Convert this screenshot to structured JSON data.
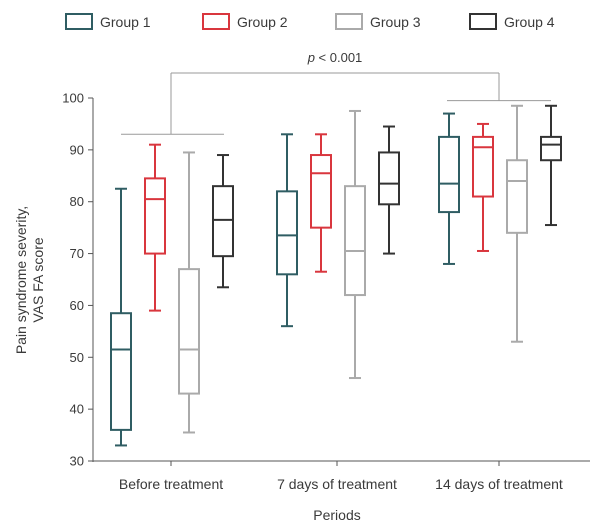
{
  "chart_data": {
    "type": "box",
    "xlabel": "Periods",
    "ylabel": [
      "Pain syndrome severity,",
      "VAS FA score"
    ],
    "ylim": [
      30,
      100
    ],
    "yticks": [
      30,
      40,
      50,
      60,
      70,
      80,
      90,
      100
    ],
    "categories": [
      "Before treatment",
      "7 days of treatment",
      "14 days of treatment"
    ],
    "legend_position": "top",
    "grid": false,
    "series": [
      {
        "name": "Group 1",
        "color": "#2f5d63",
        "boxes": [
          {
            "min": 33,
            "q1": 36,
            "median": 51.5,
            "q3": 58.5,
            "max": 82.5
          },
          {
            "min": 56,
            "q1": 66,
            "median": 73.5,
            "q3": 82,
            "max": 93
          },
          {
            "min": 68,
            "q1": 78,
            "median": 83.5,
            "q3": 92.5,
            "max": 97
          }
        ]
      },
      {
        "name": "Group 2",
        "color": "#d9363e",
        "boxes": [
          {
            "min": 59,
            "q1": 70,
            "median": 80.5,
            "q3": 84.5,
            "max": 91
          },
          {
            "min": 66.5,
            "q1": 75,
            "median": 85.5,
            "q3": 89,
            "max": 93
          },
          {
            "min": 70.5,
            "q1": 81,
            "median": 90.5,
            "q3": 92.5,
            "max": 95
          }
        ]
      },
      {
        "name": "Group 3",
        "color": "#aaaaaa",
        "boxes": [
          {
            "min": 35.5,
            "q1": 43,
            "median": 51.5,
            "q3": 67,
            "max": 89.5
          },
          {
            "min": 46,
            "q1": 62,
            "median": 70.5,
            "q3": 83,
            "max": 97.5
          },
          {
            "min": 53,
            "q1": 74,
            "median": 84,
            "q3": 88,
            "max": 98.5
          }
        ]
      },
      {
        "name": "Group 4",
        "color": "#333333",
        "boxes": [
          {
            "min": 63.5,
            "q1": 69.5,
            "median": 76.5,
            "q3": 83,
            "max": 89
          },
          {
            "min": 70,
            "q1": 79.5,
            "median": 83.5,
            "q3": 89.5,
            "max": 94.5
          },
          {
            "min": 75.5,
            "q1": 88,
            "median": 91,
            "q3": 92.5,
            "max": 98.5
          }
        ]
      }
    ],
    "annotation": {
      "text": "p < 0.001",
      "from": "Before treatment",
      "to": "14 days of treatment"
    }
  }
}
